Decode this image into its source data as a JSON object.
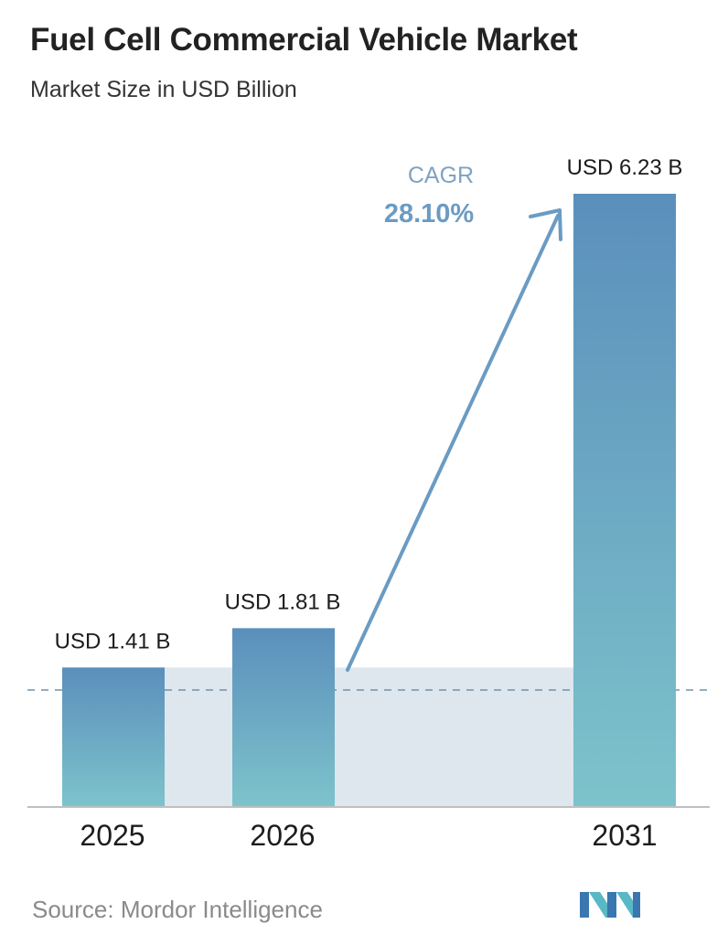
{
  "header": {
    "title": "Fuel Cell Commercial Vehicle Market",
    "subtitle": "Market Size in USD Billion"
  },
  "cagr": {
    "label": "CAGR",
    "value": "28.10%"
  },
  "footer": {
    "source": "Source:  Mordor Intelligence",
    "logo_icon": "mordor-intelligence-logo-icon"
  },
  "colors": {
    "bar_top": "#5b8fbc",
    "bar_bottom": "#7dc3cb",
    "shade": "#dee6ee",
    "arrow": "#6b9bc3",
    "cagr_label": "#7fa2c4",
    "cagr_value": "#6b9bc3",
    "dashed_line": "#6f93ac",
    "axis": "#bfbfbf"
  },
  "chart_data": {
    "type": "bar",
    "categories": [
      "2025",
      "2026",
      "2031"
    ],
    "values": [
      1.41,
      1.81,
      6.23
    ],
    "data_labels": [
      "USD 1.41 B",
      "USD 1.81 B",
      "USD 6.23 B"
    ],
    "title": "Fuel Cell Commercial Vehicle Market",
    "subtitle": "Market Size in USD Billion",
    "xlabel": "",
    "ylabel": "",
    "ylim": [
      0,
      7.2
    ],
    "grid": false,
    "legend": "none"
  }
}
